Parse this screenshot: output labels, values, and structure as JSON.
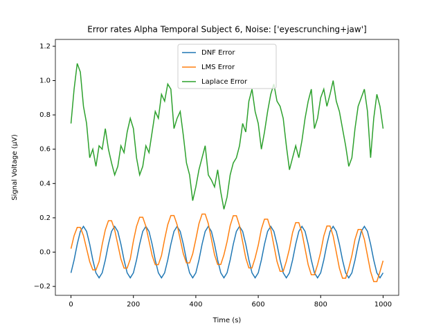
{
  "chart_data": {
    "type": "line",
    "title": "Error rates Alpha Temporal Subject 6, Noise: ['eyescrunching+jaw']",
    "xlabel": "Time (s)",
    "ylabel": "Signal Voltage (μV)",
    "x": [
      0,
      10,
      20,
      30,
      40,
      50,
      60,
      70,
      80,
      90,
      100,
      110,
      120,
      130,
      140,
      150,
      160,
      170,
      180,
      190,
      200,
      210,
      220,
      230,
      240,
      250,
      260,
      270,
      280,
      290,
      300,
      310,
      320,
      330,
      340,
      350,
      360,
      370,
      380,
      390,
      400,
      410,
      420,
      430,
      440,
      450,
      460,
      470,
      480,
      490,
      500,
      510,
      520,
      530,
      540,
      550,
      560,
      570,
      580,
      590,
      600,
      610,
      620,
      630,
      640,
      650,
      660,
      670,
      680,
      690,
      700,
      710,
      720,
      730,
      740,
      750,
      760,
      770,
      780,
      790,
      800,
      810,
      820,
      830,
      840,
      850,
      860,
      870,
      880,
      890,
      900,
      910,
      920,
      930,
      940,
      950,
      960,
      970,
      980,
      990,
      1000
    ],
    "series": [
      {
        "name": "DNF Error",
        "color": "#1f77b4",
        "values": [
          -0.121,
          -0.046,
          0.046,
          0.121,
          0.15,
          0.121,
          0.046,
          -0.046,
          -0.121,
          -0.15,
          -0.121,
          -0.046,
          0.046,
          0.121,
          0.15,
          0.121,
          0.046,
          -0.046,
          -0.121,
          -0.15,
          -0.121,
          -0.046,
          0.046,
          0.121,
          0.15,
          0.121,
          0.046,
          -0.046,
          -0.121,
          -0.15,
          -0.121,
          -0.046,
          0.046,
          0.121,
          0.15,
          0.121,
          0.046,
          -0.046,
          -0.121,
          -0.15,
          -0.121,
          -0.046,
          0.046,
          0.121,
          0.15,
          0.121,
          0.046,
          -0.046,
          -0.121,
          -0.15,
          -0.121,
          -0.046,
          0.046,
          0.121,
          0.15,
          0.121,
          0.046,
          -0.046,
          -0.121,
          -0.15,
          -0.121,
          -0.046,
          0.046,
          0.121,
          0.15,
          0.121,
          0.046,
          -0.046,
          -0.121,
          -0.15,
          -0.121,
          -0.046,
          0.046,
          0.121,
          0.15,
          0.121,
          0.046,
          -0.046,
          -0.121,
          -0.15,
          -0.121,
          -0.046,
          0.046,
          0.121,
          0.15,
          0.121,
          0.046,
          -0.046,
          -0.121,
          -0.15,
          -0.121,
          -0.046,
          0.046,
          0.121,
          0.15,
          0.121,
          0.046,
          -0.046,
          -0.121,
          -0.15,
          -0.121
        ]
      },
      {
        "name": "LMS Error",
        "color": "#ff7f0e",
        "values": [
          0.02,
          0.096,
          0.144,
          0.144,
          0.096,
          0.02,
          -0.056,
          -0.104,
          -0.104,
          -0.056,
          0.045,
          0.13,
          0.183,
          0.183,
          0.13,
          0.045,
          -0.04,
          -0.093,
          -0.093,
          -0.04,
          0.065,
          0.15,
          0.203,
          0.203,
          0.15,
          0.065,
          -0.02,
          -0.073,
          -0.073,
          -0.02,
          0.075,
          0.16,
          0.213,
          0.213,
          0.16,
          0.075,
          -0.01,
          -0.063,
          -0.063,
          -0.01,
          0.075,
          0.166,
          0.222,
          0.222,
          0.166,
          0.075,
          -0.016,
          -0.072,
          -0.072,
          -0.016,
          0.06,
          0.154,
          0.212,
          0.212,
          0.154,
          0.06,
          -0.034,
          -0.092,
          -0.092,
          -0.034,
          0.04,
          0.134,
          0.192,
          0.192,
          0.134,
          0.04,
          -0.054,
          -0.112,
          -0.112,
          -0.054,
          0.02,
          0.114,
          0.172,
          0.172,
          0.114,
          0.02,
          -0.074,
          -0.132,
          -0.132,
          -0.074,
          0,
          0.094,
          0.152,
          0.152,
          0.094,
          0,
          -0.094,
          -0.152,
          -0.152,
          -0.094,
          -0.02,
          0.074,
          0.132,
          0.132,
          0.074,
          -0.02,
          -0.114,
          -0.172,
          -0.172,
          -0.114,
          -0.05
        ]
      },
      {
        "name": "Laplace Error",
        "color": "#2ca02c",
        "values": [
          0.75,
          0.95,
          1.1,
          1.05,
          0.85,
          0.75,
          0.55,
          0.6,
          0.5,
          0.62,
          0.6,
          0.72,
          0.6,
          0.52,
          0.45,
          0.5,
          0.62,
          0.58,
          0.7,
          0.78,
          0.72,
          0.55,
          0.45,
          0.5,
          0.62,
          0.58,
          0.7,
          0.82,
          0.78,
          0.92,
          0.88,
          0.98,
          0.95,
          0.72,
          0.78,
          0.82,
          0.68,
          0.52,
          0.45,
          0.3,
          0.38,
          0.48,
          0.55,
          0.62,
          0.45,
          0.42,
          0.38,
          0.48,
          0.35,
          0.25,
          0.32,
          0.45,
          0.52,
          0.55,
          0.62,
          0.75,
          0.7,
          0.88,
          0.95,
          0.82,
          0.75,
          0.6,
          0.7,
          0.82,
          0.92,
          0.98,
          0.88,
          0.85,
          0.78,
          0.62,
          0.48,
          0.55,
          0.62,
          0.55,
          0.65,
          0.78,
          0.88,
          0.95,
          0.72,
          0.78,
          0.9,
          0.95,
          0.85,
          0.92,
          1.0,
          0.88,
          0.82,
          0.72,
          0.62,
          0.5,
          0.55,
          0.72,
          0.85,
          0.9,
          0.95,
          0.82,
          0.55,
          0.78,
          0.92,
          0.85,
          0.72
        ]
      }
    ],
    "xlim": [
      -50,
      1050
    ],
    "xticks": [
      0,
      200,
      400,
      600,
      800,
      1000
    ],
    "ylim": [
      -0.252,
      1.24
    ],
    "yticks": [
      {
        "value": -0.2,
        "label": "−0.2"
      },
      {
        "value": 0,
        "label": "0.0"
      },
      {
        "value": 0.2,
        "label": "0.2"
      },
      {
        "value": 0.4,
        "label": "0.4"
      },
      {
        "value": 0.6,
        "label": "0.6"
      },
      {
        "value": 0.8,
        "label": "0.8"
      },
      {
        "value": 1.0,
        "label": "1.0"
      },
      {
        "value": 1.2,
        "label": "1.2"
      }
    ],
    "legend": "upper center"
  }
}
